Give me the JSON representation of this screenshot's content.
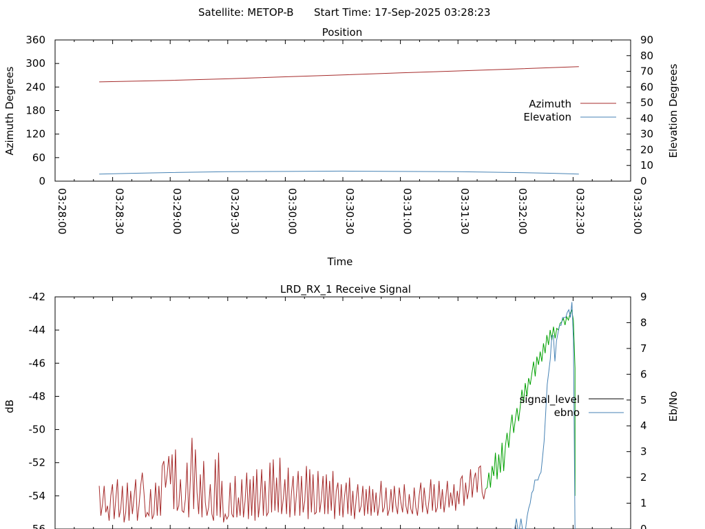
{
  "header": {
    "satellite": "Satellite: METOP-B",
    "start_time": "Start Time: 17-Sep-2025 03:28:23"
  },
  "chart_data": [
    {
      "type": "line",
      "title": "Position",
      "xlabel": "Time",
      "ylabel": "Azimuth Degrees",
      "y2label": "Elevation Degrees",
      "x_ticks": [
        "03:28:00",
        "03:28:30",
        "03:29:00",
        "03:29:30",
        "03:30:00",
        "03:30:30",
        "03:31:00",
        "03:31:30",
        "03:32:00",
        "03:32:30",
        "03:33:00"
      ],
      "xlim": [
        "03:28:00",
        "03:33:00"
      ],
      "ylim": [
        0,
        360
      ],
      "y_ticks": [
        0,
        60,
        120,
        180,
        240,
        300,
        360
      ],
      "y2lim": [
        0,
        90
      ],
      "y2_ticks": [
        0,
        10,
        20,
        30,
        40,
        50,
        60,
        70,
        80,
        90
      ],
      "legend_position": "right",
      "series": [
        {
          "name": "Azimuth",
          "axis": "y1",
          "color": "#a52a2a",
          "x": [
            "03:28:23",
            "03:29:00",
            "03:29:30",
            "03:30:00",
            "03:30:30",
            "03:31:00",
            "03:31:30",
            "03:32:00",
            "03:32:33"
          ],
          "values": [
            253,
            257,
            261,
            266,
            271,
            276,
            281,
            286,
            292
          ]
        },
        {
          "name": "Elevation",
          "axis": "y2",
          "color": "#4682b4",
          "x": [
            "03:28:23",
            "03:28:40",
            "03:29:00",
            "03:29:30",
            "03:30:00",
            "03:30:30",
            "03:31:00",
            "03:31:30",
            "03:32:00",
            "03:32:20",
            "03:32:33"
          ],
          "values": [
            4.5,
            5.0,
            5.5,
            6.0,
            6.2,
            6.4,
            6.2,
            6.0,
            5.5,
            5.0,
            4.5
          ]
        }
      ]
    },
    {
      "type": "line",
      "title": "LRD_RX_1 Receive Signal",
      "ylabel": "dB",
      "y2label": "Eb/No",
      "xlim": [
        "03:28:00",
        "03:33:00"
      ],
      "ylim": [
        -56,
        -42
      ],
      "y_ticks": [
        -56,
        -54,
        -52,
        -50,
        -48,
        -46,
        -44,
        -42
      ],
      "y2lim": [
        0,
        9
      ],
      "y2_ticks": [
        0,
        1,
        2,
        3,
        4,
        5,
        6,
        7,
        8,
        9
      ],
      "legend_position": "right",
      "series": [
        {
          "name": "signal_level",
          "axis": "y1",
          "legend_color": "#000000",
          "noise_color": "#a52a2a",
          "locked_color": "#00a000",
          "x_start": "03:28:23",
          "x_end": "03:32:31",
          "noise_values": [
            -53.4,
            -55.2,
            -54.5,
            -53.4,
            -55.0,
            -54.6,
            -55.5,
            -54.0,
            -53.3,
            -55.4,
            -54.2,
            -53.0,
            -55.3,
            -54.8,
            -53.4,
            -55.6,
            -55.0,
            -53.2,
            -55.5,
            -53.7,
            -55.1,
            -54.1,
            -53.0,
            -55.5,
            -54.6,
            -53.4,
            -52.6,
            -53.8,
            -55.3,
            -55.0,
            -55.2,
            -53.6,
            -55.4,
            -55.1,
            -53.2,
            -55.2,
            -53.4,
            -55.2,
            -52.2,
            -51.9,
            -53.5,
            -52.7,
            -51.6,
            -53.3,
            -51.5,
            -54.8,
            -51.2,
            -54.9,
            -54.6,
            -53.0,
            -54.9,
            -55.0,
            -54.2,
            -52.0,
            -55.3,
            -53.0,
            -50.5,
            -54.8,
            -51.2,
            -53.8,
            -55.1,
            -52.7,
            -55.3,
            -51.9,
            -54.4,
            -55.2,
            -54.7,
            -53.3,
            -55.1,
            -55.5,
            -51.8,
            -55.2,
            -51.4,
            -55.3,
            -53.1,
            -55.6,
            -55.1,
            -55.4,
            -55.2,
            -53.2,
            -55.1,
            -55.3,
            -52.8,
            -55.3,
            -54.1,
            -55.2,
            -53.0,
            -55.3,
            -54.3,
            -52.6,
            -55.4,
            -53.0,
            -55.2,
            -52.8,
            -55.5,
            -52.4,
            -55.3,
            -54.3,
            -52.4,
            -55.2,
            -53.1,
            -55.2,
            -55.0,
            -52.0,
            -55.0,
            -51.8,
            -54.9,
            -52.9,
            -55.0,
            -51.7,
            -55.1,
            -54.2,
            -53.0,
            -55.1,
            -52.3,
            -55.3,
            -53.8,
            -52.8,
            -55.2,
            -53.9,
            -52.5,
            -55.2,
            -52.8,
            -55.0,
            -54.3,
            -52.2,
            -55.4,
            -52.4,
            -55.0,
            -52.7,
            -55.1,
            -55.0,
            -52.5,
            -55.0,
            -54.2,
            -52.8,
            -55.1,
            -52.7,
            -55.1,
            -53.1,
            -54.9,
            -52.5,
            -55.4,
            -53.7,
            -53.2,
            -55.2,
            -53.3,
            -55.3,
            -54.0,
            -53.2,
            -55.1,
            -52.9,
            -55.2,
            -53.7,
            -55.4,
            -54.2,
            -53.3,
            -55.0,
            -54.6,
            -53.4,
            -55.2,
            -53.6,
            -55.1,
            -53.4,
            -55.2,
            -53.6,
            -55.0,
            -53.8,
            -55.2,
            -54.5,
            -53.1,
            -55.0,
            -54.7,
            -53.5,
            -55.2,
            -54.8,
            -53.6,
            -55.0,
            -53.4,
            -54.6,
            -55.1,
            -53.5,
            -54.4,
            -55.0,
            -53.3,
            -54.6,
            -55.1,
            -53.9,
            -54.8,
            -55.1,
            -53.5,
            -54.7,
            -55.2,
            -54.0,
            -53.2,
            -55.0,
            -53.5,
            -54.5,
            -55.1,
            -54.2,
            -53.0,
            -54.9,
            -53.3,
            -55.0,
            -54.7,
            -53.1,
            -54.8,
            -53.6,
            -55.0,
            -54.2,
            -53.1,
            -54.7,
            -53.8,
            -54.6,
            -53.3,
            -54.9,
            -53.7,
            -54.5,
            -53.0,
            -52.8,
            -54.6,
            -53.2,
            -54.2,
            -53.6,
            -52.4,
            -54.1,
            -53.0,
            -52.6,
            -53.8,
            -52.3,
            -52.2,
            -53.8,
            -54.2,
            -53.6
          ],
          "locked_values": [
            -53.5,
            -52.6,
            -53.5,
            -52.2,
            -52.8,
            -51.4,
            -53.0,
            -51.5,
            -52.6,
            -50.8,
            -52.5,
            -51.0,
            -50.2,
            -51.1,
            -49.9,
            -49.1,
            -50.2,
            -49.4,
            -48.7,
            -49.5,
            -48.6,
            -47.6,
            -48.4,
            -47.2,
            -48.0,
            -46.9,
            -47.3,
            -46.6,
            -45.9,
            -46.8,
            -45.6,
            -46.1,
            -45.3,
            -45.9,
            -44.8,
            -45.4,
            -44.3,
            -44.9,
            -44.0,
            -44.6,
            -43.8,
            -44.5,
            -43.9,
            -44.0,
            -43.6,
            -43.5,
            -43.3,
            -43.7,
            -43.2,
            -43.4,
            -43.0,
            -42.8,
            -43.4,
            -46.3
          ],
          "dropout": [
            -46.3,
            -48.1,
            -49.7,
            -52.5,
            -54.0
          ]
        },
        {
          "name": "ebno",
          "axis": "y2",
          "color": "#4682b4",
          "x_start": "03:31:58",
          "x_end": "03:32:31",
          "values": [
            0,
            0,
            0,
            0.4,
            0,
            0,
            0.4,
            0,
            0,
            0,
            0.5,
            0.8,
            1.0,
            1.4,
            1.5,
            1.9,
            1.9,
            1.9,
            2.1,
            2.2,
            2.8,
            3.4,
            4.5,
            5.6,
            6.1,
            6.6,
            7.5,
            7.5,
            6.5,
            7.3,
            7.6,
            7.9,
            7.9,
            8.2,
            8.2,
            8.2,
            8.4,
            8.5,
            8.2,
            8.8,
            7.3,
            0
          ]
        }
      ]
    }
  ]
}
